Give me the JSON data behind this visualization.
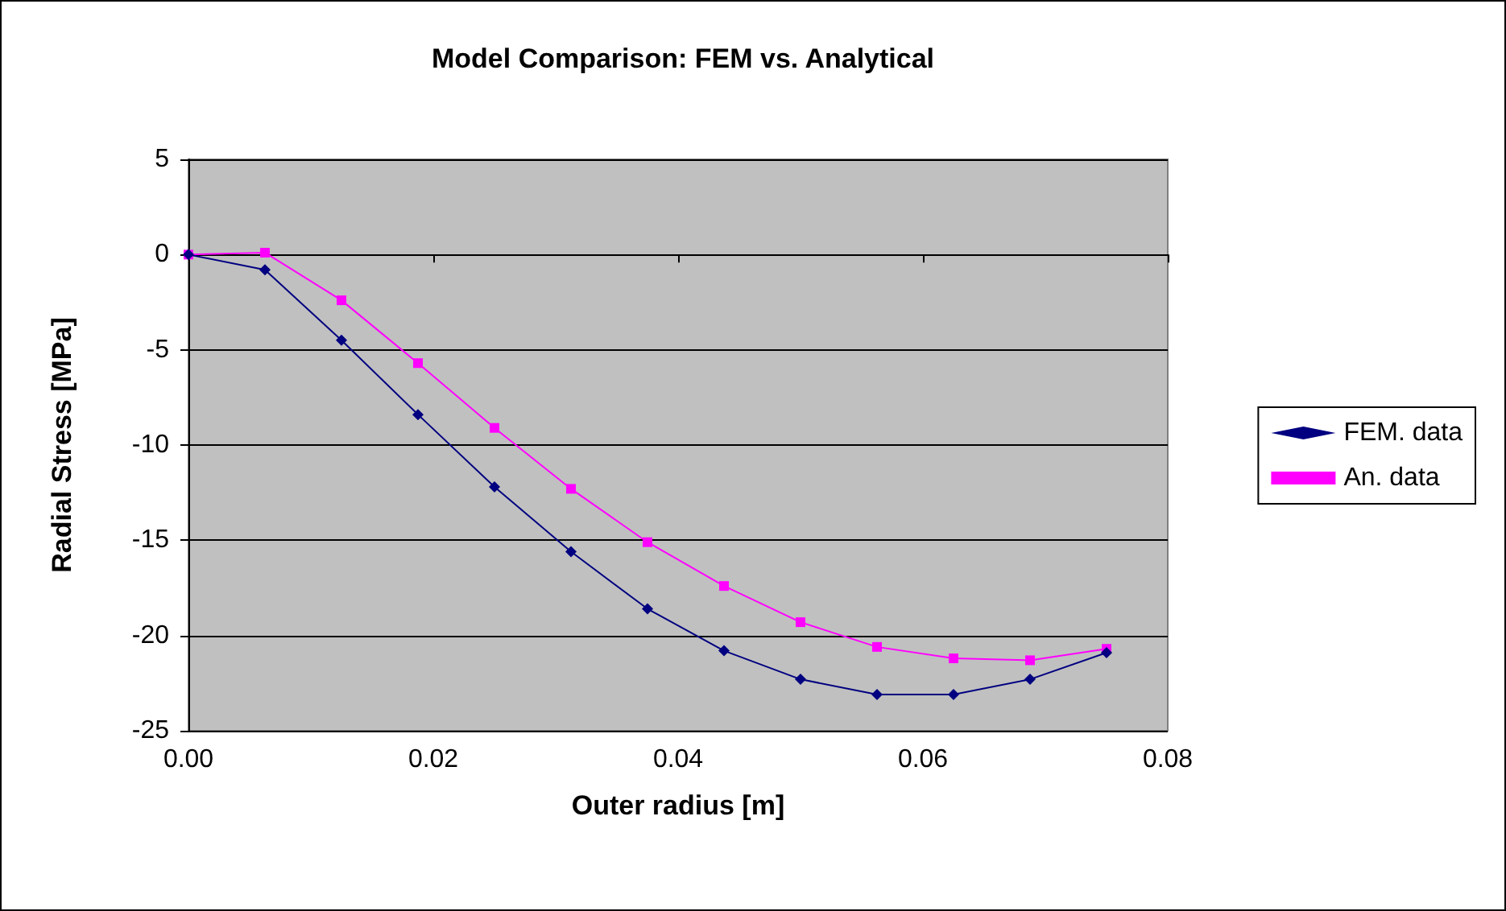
{
  "chart_data": {
    "type": "line",
    "title": "Model Comparison: FEM vs. Analytical",
    "xlabel": "Outer radius [m]",
    "ylabel": "Radial Stress [MPa]",
    "x": [
      0,
      0.00625,
      0.0125,
      0.01875,
      0.025,
      0.03125,
      0.0375,
      0.04375,
      0.05,
      0.05625,
      0.0625,
      0.06875,
      0.075
    ],
    "series": [
      {
        "name": "FEM. data",
        "color": "#000080",
        "marker": "diamond",
        "values": [
          0,
          -0.8,
          -4.5,
          -8.4,
          -12.2,
          -15.6,
          -18.6,
          -20.8,
          -22.3,
          -23.1,
          -23.1,
          -22.3,
          -20.9
        ]
      },
      {
        "name": "An. data",
        "color": "#ff00ff",
        "marker": "square",
        "values": [
          0,
          0.1,
          -2.4,
          -5.7,
          -9.1,
          -12.3,
          -15.1,
          -17.4,
          -19.3,
          -20.6,
          -21.2,
          -21.3,
          -20.7
        ]
      }
    ],
    "xlim": [
      0,
      0.08
    ],
    "xticks": [
      {
        "value": 0,
        "label": "0.00"
      },
      {
        "value": 0.02,
        "label": "0.02"
      },
      {
        "value": 0.04,
        "label": "0.04"
      },
      {
        "value": 0.06,
        "label": "0.06"
      },
      {
        "value": 0.08,
        "label": "0.08"
      }
    ],
    "ylim": [
      -25,
      5
    ],
    "yticks": [
      -25,
      -20,
      -15,
      -10,
      -5,
      0,
      5
    ],
    "grid": "y",
    "legend": "right",
    "line_style": "solid"
  }
}
